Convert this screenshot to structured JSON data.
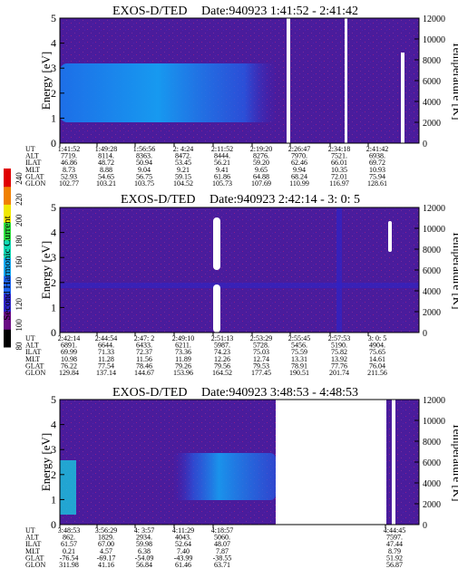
{
  "colorbar": {
    "label": "Second Harmonic Current",
    "ticks": [
      "80",
      "100",
      "120",
      "140",
      "160",
      "180",
      "200",
      "220",
      "240"
    ],
    "colors": [
      "#000000",
      "#6a0a84",
      "#2e24c8",
      "#1e64f0",
      "#14a8f0",
      "#10d8b4",
      "#30e040",
      "#f0e800",
      "#f08000",
      "#e00000"
    ]
  },
  "chart_data": [
    {
      "type": "heatmap",
      "title": "EXOS-D/TED",
      "date_range": "Date:940923  1:41:52 - 2:41:42",
      "ylabel": "Energy [eV]",
      "y2label": "Temperature [K]",
      "yticks": [
        "0",
        "1",
        "2",
        "3",
        "4",
        "5"
      ],
      "y2ticks": [
        "0",
        "2000",
        "4000",
        "6000",
        "8000",
        "10000",
        "12000"
      ],
      "ylim": [
        0,
        5
      ],
      "y2lim": [
        0,
        12000
      ],
      "row_labels": [
        "UT",
        "ALT",
        "ILAT",
        "MLT",
        "GLAT",
        "GLON"
      ],
      "columns": [
        [
          "1:41:52",
          "7719.",
          "46.86",
          "8.73",
          "52.93",
          "102.77"
        ],
        [
          "1:49:28",
          "8114.",
          "48.72",
          "8.88",
          "54.65",
          "103.21"
        ],
        [
          "1:56:56",
          "8363.",
          "50.94",
          "9.04",
          "56.75",
          "103.75"
        ],
        [
          "2: 4:24",
          "8472.",
          "53.45",
          "9.21",
          "59.15",
          "104.52"
        ],
        [
          "2:11:52",
          "8444.",
          "56.21",
          "9.41",
          "61.86",
          "105.73"
        ],
        [
          "2:19:20",
          "8276.",
          "59.20",
          "9.65",
          "64.88",
          "107.69"
        ],
        [
          "2:26:47",
          "7970.",
          "62.46",
          "9.94",
          "68.24",
          "110.99"
        ],
        [
          "2:34:18",
          "7521.",
          "66.01",
          "10.35",
          "72.01",
          "116.97"
        ],
        [
          "2:41:42",
          "6938.",
          "69.72",
          "10.93",
          "75.94",
          "128.61"
        ]
      ],
      "features": [
        {
          "name": "enhanced low-energy band",
          "t_start": "1:41:52",
          "t_end": "2:19:20",
          "energy_range": [
            0.8,
            3.0
          ]
        },
        {
          "name": "data gap",
          "t": "2:19:20"
        },
        {
          "name": "data gap",
          "t": "2:34:00"
        },
        {
          "name": "data gap",
          "t": "2:41:00"
        }
      ]
    },
    {
      "type": "heatmap",
      "title": "EXOS-D/TED",
      "date_range": "Date:940923  2:42:14 - 3: 0: 5",
      "ylabel": "Energy [eV]",
      "y2label": "Temperature [K]",
      "yticks": [
        "0",
        "1",
        "2",
        "3",
        "4",
        "5"
      ],
      "y2ticks": [
        "0",
        "2000",
        "4000",
        "6000",
        "8000",
        "10000",
        "12000"
      ],
      "ylim": [
        0,
        5
      ],
      "y2lim": [
        0,
        12000
      ],
      "row_labels": [
        "UT",
        "ALT",
        "ILAT",
        "MLT",
        "GLAT",
        "GLON"
      ],
      "columns": [
        [
          "2:42:14",
          "6891.",
          "69.99",
          "10.98",
          "76.22",
          "129.84"
        ],
        [
          "2:44:54",
          "6644.",
          "71.33",
          "11.28",
          "77.54",
          "137.14"
        ],
        [
          "2:47: 2",
          "6433.",
          "72.37",
          "11.56",
          "78.46",
          "144.67"
        ],
        [
          "2:49:10",
          "6211.",
          "73.36",
          "11.89",
          "79.26",
          "153.96"
        ],
        [
          "2:51:13",
          "5987.",
          "74.23",
          "12.26",
          "79.56",
          "164.52"
        ],
        [
          "2:53:29",
          "5728.",
          "75.03",
          "12.74",
          "79.53",
          "177.45"
        ],
        [
          "2:55:45",
          "5456.",
          "75.59",
          "13.31",
          "78.91",
          "190.51"
        ],
        [
          "2:57:53",
          "5190.",
          "75.82",
          "13.92",
          "77.76",
          "201.74"
        ],
        [
          "3: 0: 5",
          "4904.",
          "75.65",
          "14.61",
          "76.04",
          "211.56"
        ]
      ],
      "features": [
        {
          "name": "data gap",
          "t": "2:49:10"
        },
        {
          "name": "data gap",
          "t": "2:59:00"
        }
      ]
    },
    {
      "type": "heatmap",
      "title": "EXOS-D/TED",
      "date_range": "Date:940923  3:48:53 - 4:48:53",
      "ylabel": "Energy [eV]",
      "y2label": "Temperature [K]",
      "yticks": [
        "0",
        "1",
        "2",
        "3",
        "4",
        "5"
      ],
      "y2ticks": [
        "0",
        "2000",
        "4000",
        "6000",
        "8000",
        "10000",
        "12000"
      ],
      "ylim": [
        0,
        5
      ],
      "y2lim": [
        0,
        12000
      ],
      "row_labels": [
        "UT",
        "ALT",
        "ILAT",
        "MLT",
        "GLAT",
        "GLON"
      ],
      "columns": [
        [
          "3:48:53",
          "862.",
          "61.57",
          "0.21",
          "-76.54",
          "311.98"
        ],
        [
          "3:56:29",
          "1829.",
          "67.00",
          "4.57",
          "-69.17",
          "41.16"
        ],
        [
          "4: 3:57",
          "2934.",
          "59.98",
          "6.38",
          "-54.09",
          "56.84"
        ],
        [
          "4:11:29",
          "4043.",
          "52.64",
          "7.40",
          "-43.99",
          "61.46"
        ],
        [
          "4:18:57",
          "5060.",
          "48.07",
          "7.87",
          "-38.55",
          "63.71"
        ],
        [
          "4:44:45",
          "7597.",
          "47.44",
          "8.79",
          "51.92",
          "56.87"
        ]
      ],
      "features": [
        {
          "name": "enhanced band",
          "t_start": "3:48:53",
          "t_end": "4:18:57",
          "energy_range": [
            0.8,
            3.0
          ]
        },
        {
          "name": "data gap",
          "t_start": "4:18:57",
          "t_end": "4:44:45"
        }
      ]
    }
  ]
}
